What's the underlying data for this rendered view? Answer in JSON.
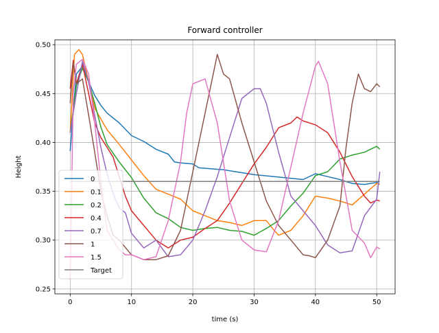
{
  "chart_data": {
    "type": "line",
    "title": "Forward controller",
    "xlabel": "time (s)",
    "ylabel": "Height",
    "xlim": [
      -2.5,
      53
    ],
    "ylim": [
      0.245,
      0.505
    ],
    "xticks": [
      0,
      10,
      20,
      30,
      40,
      50
    ],
    "yticks": [
      0.25,
      0.3,
      0.35,
      0.4,
      0.45,
      0.5
    ],
    "ytick_labels": [
      "0.25",
      "0.30",
      "0.35",
      "0.40",
      "0.45",
      "0.50"
    ],
    "grid": true,
    "legend_position": "lower-left",
    "series": [
      {
        "name": "0",
        "color": "#1f77b4",
        "x": [
          0,
          1,
          2,
          3,
          4,
          5,
          6,
          8,
          10,
          12,
          14,
          16,
          17,
          18,
          20,
          21,
          25,
          30,
          35,
          38,
          40,
          42,
          44,
          46,
          48,
          50,
          50.5
        ],
        "y": [
          0.391,
          0.47,
          0.478,
          0.462,
          0.448,
          0.438,
          0.43,
          0.42,
          0.407,
          0.401,
          0.393,
          0.388,
          0.38,
          0.379,
          0.378,
          0.374,
          0.372,
          0.367,
          0.364,
          0.362,
          0.368,
          0.365,
          0.362,
          0.358,
          0.357,
          0.359,
          0.36
        ]
      },
      {
        "name": "0.1",
        "color": "#ff7f0e",
        "x": [
          0,
          0.7,
          1.4,
          2,
          3,
          4,
          6,
          8,
          10,
          12,
          14,
          16,
          18,
          20,
          22,
          24,
          26,
          28,
          30,
          32,
          33,
          34,
          36,
          38,
          40,
          42,
          44,
          46,
          48,
          50,
          50.5
        ],
        "y": [
          0.41,
          0.49,
          0.495,
          0.49,
          0.462,
          0.435,
          0.413,
          0.398,
          0.382,
          0.366,
          0.352,
          0.347,
          0.342,
          0.33,
          0.325,
          0.32,
          0.318,
          0.315,
          0.32,
          0.32,
          0.312,
          0.305,
          0.31,
          0.325,
          0.345,
          0.343,
          0.34,
          0.336,
          0.347,
          0.358,
          0.357
        ]
      },
      {
        "name": "0.2",
        "color": "#2ca02c",
        "x": [
          0,
          1,
          2,
          3,
          4,
          5,
          6,
          8,
          10,
          12,
          14,
          16,
          18,
          20,
          22,
          24,
          26,
          28,
          30,
          32,
          34,
          36,
          38,
          40,
          42,
          44,
          46,
          48,
          50,
          50.5
        ],
        "y": [
          0.41,
          0.458,
          0.476,
          0.462,
          0.44,
          0.416,
          0.398,
          0.38,
          0.364,
          0.343,
          0.328,
          0.322,
          0.313,
          0.31,
          0.312,
          0.313,
          0.31,
          0.309,
          0.305,
          0.312,
          0.32,
          0.335,
          0.348,
          0.366,
          0.37,
          0.383,
          0.387,
          0.39,
          0.396,
          0.393
        ]
      },
      {
        "name": "0.4",
        "color": "#d62728",
        "x": [
          0,
          0.5,
          1,
          2,
          3,
          4,
          5,
          6,
          7,
          8,
          9,
          10,
          12,
          14,
          16,
          18,
          20,
          22,
          24,
          26,
          28,
          30,
          32,
          34,
          36,
          37,
          38,
          40,
          42,
          44,
          46,
          48,
          49,
          50,
          50.5
        ],
        "y": [
          0.455,
          0.484,
          0.46,
          0.48,
          0.45,
          0.42,
          0.405,
          0.395,
          0.385,
          0.365,
          0.345,
          0.33,
          0.315,
          0.3,
          0.292,
          0.3,
          0.303,
          0.312,
          0.32,
          0.338,
          0.358,
          0.378,
          0.395,
          0.415,
          0.42,
          0.426,
          0.422,
          0.418,
          0.41,
          0.39,
          0.365,
          0.345,
          0.338,
          0.341,
          0.34
        ]
      },
      {
        "name": "0.7",
        "color": "#9467bd",
        "x": [
          0,
          1,
          2,
          3,
          4,
          5,
          6,
          7,
          8,
          9,
          10,
          12,
          14,
          16,
          18,
          20,
          22,
          24,
          26,
          28,
          30,
          31,
          32,
          34,
          36,
          38,
          40,
          42,
          44,
          46,
          48,
          50,
          50.5
        ],
        "y": [
          0.41,
          0.45,
          0.483,
          0.462,
          0.428,
          0.395,
          0.368,
          0.348,
          0.333,
          0.328,
          0.307,
          0.292,
          0.3,
          0.283,
          0.285,
          0.3,
          0.33,
          0.365,
          0.405,
          0.445,
          0.455,
          0.455,
          0.44,
          0.39,
          0.345,
          0.33,
          0.315,
          0.295,
          0.287,
          0.289,
          0.325,
          0.342,
          0.37
        ]
      },
      {
        "name": "1",
        "color": "#8c564b",
        "x": [
          0,
          0.5,
          1,
          2,
          3,
          4,
          5,
          6,
          7,
          8,
          10,
          12,
          14,
          16,
          18,
          20,
          22,
          23,
          24,
          25,
          26,
          28,
          30,
          32,
          34,
          36,
          38,
          39,
          40,
          42,
          44,
          45,
          46,
          47,
          48,
          49,
          50,
          50.5
        ],
        "y": [
          0.44,
          0.482,
          0.46,
          0.465,
          0.428,
          0.39,
          0.35,
          0.325,
          0.305,
          0.3,
          0.285,
          0.28,
          0.28,
          0.284,
          0.31,
          0.37,
          0.43,
          0.46,
          0.49,
          0.47,
          0.465,
          0.42,
          0.38,
          0.34,
          0.315,
          0.3,
          0.285,
          0.284,
          0.282,
          0.3,
          0.335,
          0.395,
          0.44,
          0.47,
          0.455,
          0.452,
          0.46,
          0.457
        ]
      },
      {
        "name": "1.5",
        "color": "#e377c2",
        "x": [
          0,
          0.5,
          1,
          2,
          3,
          4,
          5,
          6,
          7,
          8,
          9,
          10,
          12,
          14,
          16,
          18,
          19,
          20,
          22,
          24,
          26,
          28,
          30,
          32,
          34,
          36,
          38,
          40,
          40.5,
          42,
          44,
          46,
          48,
          49,
          50,
          50.5
        ],
        "y": [
          0.26,
          0.45,
          0.48,
          0.485,
          0.47,
          0.42,
          0.36,
          0.31,
          0.3,
          0.29,
          0.285,
          0.285,
          0.28,
          0.283,
          0.32,
          0.38,
          0.43,
          0.46,
          0.465,
          0.42,
          0.34,
          0.3,
          0.29,
          0.288,
          0.32,
          0.375,
          0.43,
          0.478,
          0.483,
          0.46,
          0.38,
          0.31,
          0.297,
          0.282,
          0.293,
          0.291
        ]
      },
      {
        "name": "Target",
        "color": "#7f7f7f",
        "x": [
          0,
          50.5
        ],
        "y": [
          0.36,
          0.36
        ]
      }
    ]
  }
}
